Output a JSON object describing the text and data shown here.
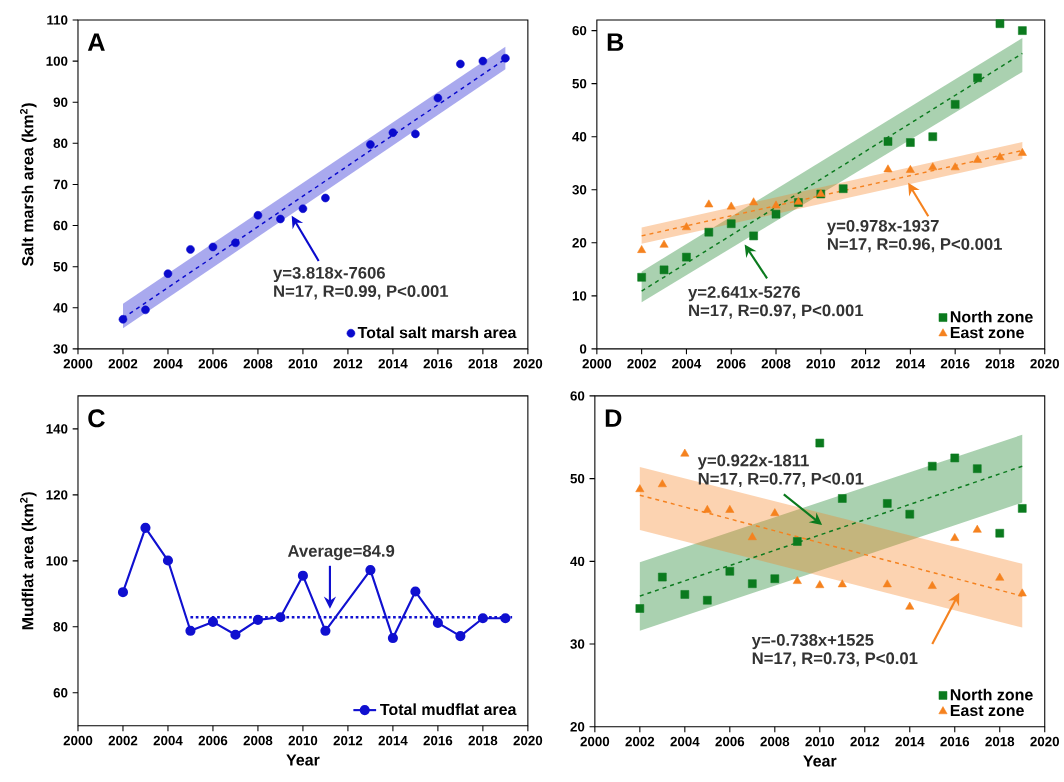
{
  "chart_data": [
    {
      "type": "scatter",
      "title": "A",
      "ylabel": "Salt marsh area (km$^{2}$)",
      "xlim": [
        2000,
        2020
      ],
      "ylim": [
        30,
        110
      ],
      "xticks": [
        2000,
        2002,
        2004,
        2006,
        2008,
        2010,
        2012,
        2014,
        2016,
        2018,
        2020
      ],
      "yticks": [
        30,
        40,
        50,
        60,
        70,
        80,
        90,
        100,
        110
      ],
      "legend": "bottom right",
      "series": [
        {
          "name": "Total salt marsh area",
          "marker": "circle",
          "color": "#0a0acd",
          "x": [
            2002,
            2003,
            2004,
            2005,
            2006,
            2007,
            2008,
            2009,
            2010,
            2011,
            2013,
            2014,
            2015,
            2016,
            2017,
            2018,
            2019
          ],
          "values": [
            37.2,
            39.5,
            48.3,
            54.2,
            54.8,
            55.8,
            62.5,
            61.6,
            64.1,
            66.7,
            79.7,
            82.6,
            82.3,
            91.0,
            99.3,
            100.0,
            100.7
          ]
        },
        {
          "type": "line",
          "line_style": "dashed",
          "color": "#0a0acd",
          "x": [
            2002,
            2019
          ],
          "values": [
            37.5,
            100.5
          ],
          "lower": [
            35,
            98
          ],
          "upper": [
            41,
            103.5
          ]
        }
      ],
      "annotations": [
        {
          "text": "y=3.818x-7606",
          "x": 2009.5,
          "y": 62.4
        },
        "N=17, R=0.99, P<0.001"
      ]
    },
    {
      "type": "scatter",
      "title": "B",
      "xlim": [
        2000,
        2020
      ],
      "ylim": [
        0,
        62
      ],
      "xticks": [
        2000,
        2002,
        2004,
        2006,
        2008,
        2010,
        2012,
        2014,
        2016,
        2018,
        2020
      ],
      "yticks": [
        0,
        10,
        20,
        30,
        40,
        50,
        60
      ],
      "legend": "bottom right",
      "series": [
        {
          "type": "line",
          "line_style": "dashed",
          "color": "#0b7a1e",
          "x": [
            2002,
            2019
          ],
          "values": [
            10.9,
            55.7
          ],
          "lower": [
            8.8,
            52.2
          ],
          "upper": [
            14.6,
            58.6
          ]
        },
        {
          "type": "line",
          "line_style": "dashed",
          "color": "#f5821f",
          "x": [
            2002,
            2019
          ],
          "values": [
            21.3,
            37.4
          ],
          "lower": [
            19.8,
            35.8
          ],
          "upper": [
            22.9,
            39.0
          ]
        },
        {
          "name": "North zone",
          "marker": "square",
          "color": "#0b7a1e",
          "x": [
            2002,
            2003,
            2004,
            2005,
            2006,
            2007,
            2008,
            2009,
            2010,
            2011,
            2013,
            2014,
            2015,
            2016,
            2017,
            2018,
            2019
          ],
          "values": [
            13.5,
            14.9,
            17.3,
            22.0,
            23.6,
            21.3,
            25.4,
            27.6,
            29.2,
            30.2,
            39.1,
            38.9,
            40.0,
            46.1,
            51.1,
            61.3,
            60.0
          ]
        },
        {
          "name": "East zone",
          "marker": "triangle",
          "color": "#f5821f",
          "x": [
            2002,
            2003,
            2004,
            2005,
            2006,
            2007,
            2008,
            2009,
            2010,
            2011,
            2013,
            2014,
            2015,
            2016,
            2017,
            2018,
            2019
          ],
          "values": [
            18.6,
            19.6,
            22.9,
            27.2,
            26.8,
            27.6,
            27.0,
            27.7,
            29.2,
            null,
            33.8,
            33.7,
            34.2,
            34.2,
            35.6,
            36.1,
            36.9
          ]
        }
      ],
      "annotations": [
        "y=2.641x-5276",
        "N=17, R=0.97, P<0.001",
        {
          "text": "y=0.978x-1937",
          "x": 2013.9,
          "y": 31.3
        },
        "N=17, R=0.96, P<0.001"
      ]
    },
    {
      "type": "line",
      "title": "C",
      "xlabel": "Year",
      "ylabel": "Mudflat area (km$^{2}$)",
      "xlim": [
        2000,
        2020
      ],
      "ylim": [
        50,
        150
      ],
      "xticks": [
        2000,
        2002,
        2004,
        2006,
        2008,
        2010,
        2012,
        2014,
        2016,
        2018,
        2020
      ],
      "yticks": [
        60,
        80,
        100,
        120,
        140
      ],
      "legend": "bottom right",
      "series": [
        {
          "name": "Total mudflat area",
          "marker": "circle",
          "line_style": "solid",
          "color": "#1010d0",
          "x": [
            2002,
            2003,
            2004,
            2005,
            2006,
            2007,
            2008,
            2009,
            2010,
            2011,
            2013,
            2014,
            2015,
            2016,
            2017,
            2018,
            2019
          ],
          "values": [
            90.5,
            110.0,
            100.1,
            78.8,
            81.5,
            77.6,
            82.1,
            82.9,
            95.5,
            78.8,
            97.2,
            76.6,
            90.7,
            81.2,
            77.2,
            82.6,
            82.6
          ]
        },
        {
          "type": "line",
          "line_style": "dotted",
          "color": "#1010d0",
          "x": [
            2005,
            2019.3
          ],
          "values": [
            82.9,
            82.9
          ]
        }
      ],
      "annotations": [
        "Average=84.9"
      ]
    },
    {
      "type": "scatter",
      "title": "D",
      "xlabel": "Year",
      "xlim": [
        2000,
        2020
      ],
      "ylim": [
        20,
        60
      ],
      "xticks": [
        2000,
        2002,
        2004,
        2006,
        2008,
        2010,
        2012,
        2014,
        2016,
        2018,
        2020
      ],
      "yticks": [
        20,
        30,
        40,
        50,
        60
      ],
      "legend": "bottom right",
      "series": [
        {
          "type": "line",
          "line_style": "dashed",
          "color": "#0b7a1e",
          "x": [
            2002,
            2019
          ],
          "values": [
            35.8,
            51.5
          ],
          "lower": [
            31.6,
            47.1
          ],
          "upper": [
            39.9,
            55.3
          ]
        },
        {
          "type": "line",
          "line_style": "dashed",
          "color": "#f5821f",
          "x": [
            2002,
            2019
          ],
          "values": [
            48.0,
            35.8
          ],
          "lower": [
            43.8,
            32.0
          ],
          "upper": [
            51.4,
            39.7
          ]
        },
        {
          "name": "North zone",
          "marker": "square",
          "color": "#0b7a1e",
          "x": [
            2002,
            2003,
            2004,
            2005,
            2006,
            2007,
            2008,
            2009,
            2010,
            2011,
            2013,
            2014,
            2015,
            2016,
            2017,
            2018,
            2019
          ],
          "values": [
            34.3,
            38.1,
            36.0,
            35.3,
            38.8,
            37.3,
            37.9,
            42.4,
            54.3,
            47.6,
            47.0,
            45.7,
            51.5,
            52.5,
            51.2,
            43.4,
            46.4
          ]
        },
        {
          "name": "East zone",
          "marker": "triangle",
          "color": "#f5821f",
          "x": [
            2002,
            2003,
            2004,
            2005,
            2006,
            2007,
            2008,
            2009,
            2010,
            2011,
            2013,
            2014,
            2015,
            2016,
            2017,
            2018,
            2019
          ],
          "values": [
            48.7,
            49.3,
            53.0,
            46.2,
            46.2,
            42.9,
            45.8,
            37.6,
            37.1,
            37.2,
            37.2,
            34.5,
            37.0,
            42.8,
            43.8,
            38.0,
            36.1
          ]
        }
      ],
      "annotations": [
        "y=0.922x-1811",
        "N=17, R=0.77, P<0.01",
        "y=-0.738x+1525",
        "N=17, R=0.73, P<0.01"
      ]
    }
  ]
}
